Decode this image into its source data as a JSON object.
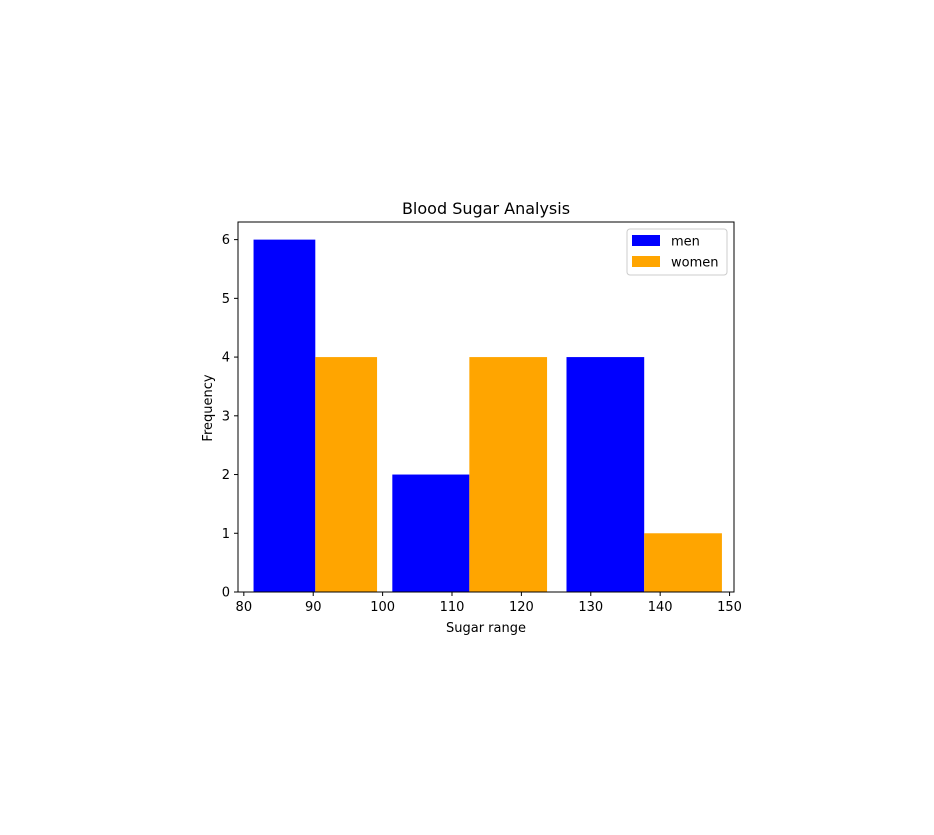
{
  "chart_data": {
    "type": "bar",
    "title": "Blood Sugar Analysis",
    "xlabel": "Sugar range",
    "ylabel": "Frequency",
    "xlim": [
      79.16,
      150.64
    ],
    "ylim": [
      0,
      6.3
    ],
    "xticks": [
      80,
      90,
      100,
      110,
      120,
      130,
      140,
      150
    ],
    "yticks": [
      0,
      1,
      2,
      3,
      4,
      5,
      6
    ],
    "legend_position": "top-right",
    "series": [
      {
        "name": "men",
        "color": "#0000ff",
        "bars": [
          {
            "x0": 81.4,
            "x1": 90.3,
            "value": 6
          },
          {
            "x0": 101.4,
            "x1": 112.5,
            "value": 2
          },
          {
            "x0": 126.5,
            "x1": 137.7,
            "value": 4
          }
        ]
      },
      {
        "name": "women",
        "color": "#ffa500",
        "bars": [
          {
            "x0": 90.3,
            "x1": 99.2,
            "value": 4
          },
          {
            "x0": 112.5,
            "x1": 123.7,
            "value": 4
          },
          {
            "x0": 137.7,
            "x1": 148.9,
            "value": 1
          }
        ]
      }
    ]
  }
}
